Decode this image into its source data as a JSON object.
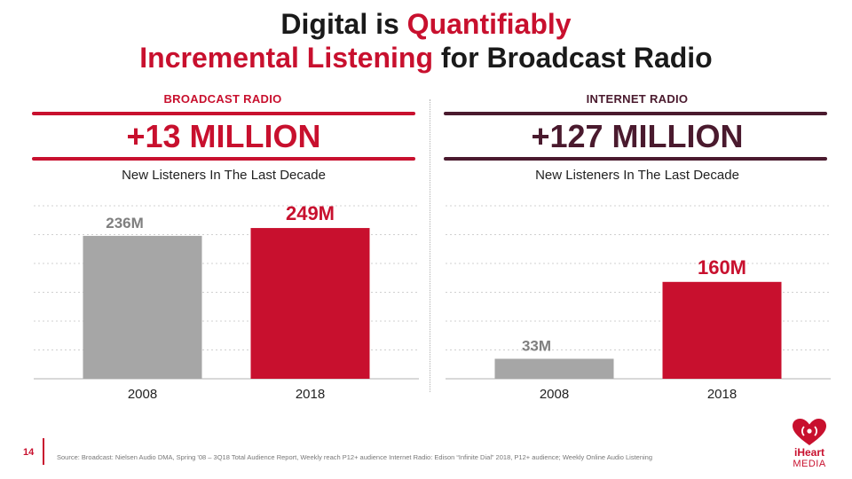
{
  "title": {
    "part1": "Digital is ",
    "part2": "Quantifiably",
    "part3": "Incremental Listening",
    "part4": " for Broadcast Radio"
  },
  "panels": [
    {
      "heading": "BROADCAST RADIO",
      "big": "+13 MILLION",
      "sub": "New Listeners In The Last Decade",
      "rule_color": "#c8102e"
    },
    {
      "heading": "INTERNET RADIO",
      "big": "+127 MILLION",
      "sub": "New Listeners In The Last Decade",
      "rule_color": "#4a1a2e"
    }
  ],
  "chart_data": [
    {
      "type": "bar",
      "categories": [
        "2008",
        "2018"
      ],
      "values": [
        236,
        249
      ],
      "data_labels": [
        "236M",
        "249M"
      ],
      "colors": [
        "#a6a6a6",
        "#c8102e"
      ],
      "label_colors": [
        "#7f7f7f",
        "#c8102e"
      ],
      "ylim": [
        0,
        300
      ],
      "grid": true
    },
    {
      "type": "bar",
      "categories": [
        "2008",
        "2018"
      ],
      "values": [
        33,
        160
      ],
      "data_labels": [
        "33M",
        "160M"
      ],
      "colors": [
        "#a6a6a6",
        "#c8102e"
      ],
      "label_colors": [
        "#7f7f7f",
        "#c8102e"
      ],
      "ylim": [
        0,
        300
      ],
      "grid": true
    }
  ],
  "footer": {
    "page_number": "14",
    "source": "Source: Broadcast: Nielsen Audio DMA, Spring '08 – 3Q18 Total Audience Report, Weekly reach P12+ audience Internet Radio: Edison “Infinite Dial” 2018, P12+ audience; Weekly Online Audio Listening",
    "logo_line1": "iHeart",
    "logo_line2": "MEDIA"
  }
}
